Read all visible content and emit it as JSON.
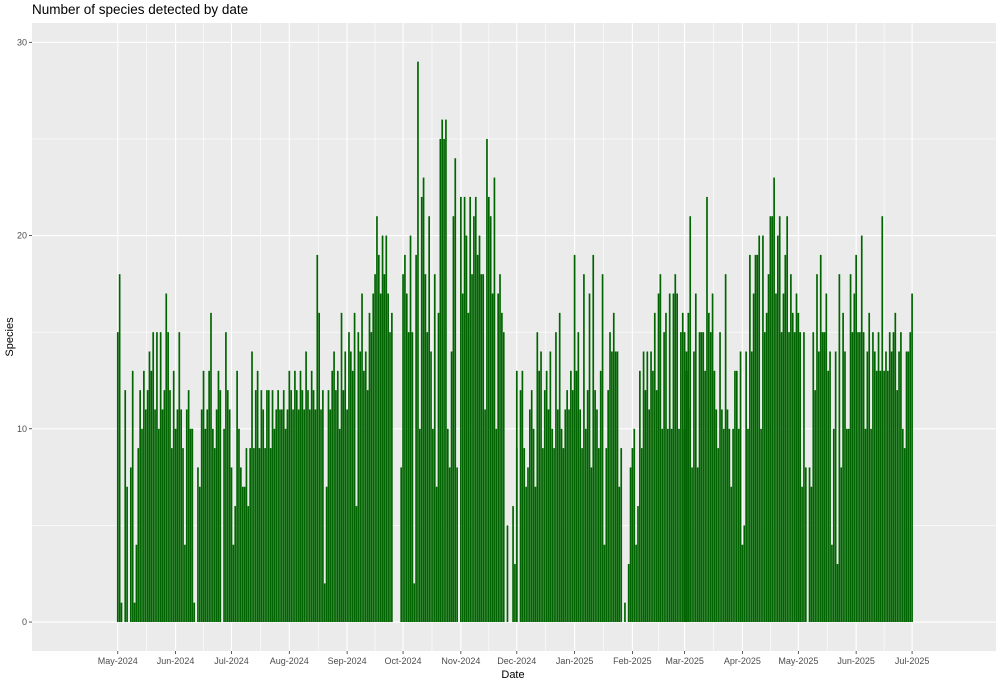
{
  "chart_data": {
    "type": "bar",
    "title": "Number of species detected by date",
    "xlabel": "Date",
    "ylabel": "Species",
    "ylim": [
      -1.5,
      31
    ],
    "y_ticks": [
      0,
      10,
      20,
      30
    ],
    "x_ticks": [
      {
        "label": "May-2024",
        "date": "2024-05-01"
      },
      {
        "label": "Jun-2024",
        "date": "2024-06-01"
      },
      {
        "label": "Jul-2024",
        "date": "2024-07-01"
      },
      {
        "label": "Aug-2024",
        "date": "2024-08-01"
      },
      {
        "label": "Sep-2024",
        "date": "2024-09-01"
      },
      {
        "label": "Oct-2024",
        "date": "2024-10-01"
      },
      {
        "label": "Nov-2024",
        "date": "2024-11-01"
      },
      {
        "label": "Dec-2024",
        "date": "2024-12-01"
      },
      {
        "label": "Jan-2025",
        "date": "2025-01-01"
      },
      {
        "label": "Feb-2025",
        "date": "2025-02-01"
      },
      {
        "label": "Mar-2025",
        "date": "2025-03-01"
      },
      {
        "label": "Apr-2025",
        "date": "2025-04-01"
      },
      {
        "label": "May-2025",
        "date": "2025-05-01"
      },
      {
        "label": "Jun-2025",
        "date": "2025-06-01"
      },
      {
        "label": "Jul-2025",
        "date": "2025-07-01"
      }
    ],
    "grid": true,
    "bar_color": "#006400",
    "panel_color": "#EBEBEB",
    "grid_color": "#FFFFFF",
    "series": [
      {
        "month": "2024-05",
        "values": [
          15,
          18,
          1,
          0,
          12,
          7,
          0,
          8,
          13,
          1,
          4,
          9,
          12,
          10,
          13,
          11,
          12,
          14,
          13,
          15,
          11,
          15,
          10,
          15,
          11,
          12,
          17,
          15,
          12,
          9,
          13
        ]
      },
      {
        "month": "2024-06",
        "values": [
          10,
          11,
          15,
          11,
          9,
          4,
          11,
          12,
          10,
          10,
          1,
          0,
          8,
          7,
          11,
          13,
          10,
          11,
          13,
          16,
          10,
          9,
          11,
          13,
          12,
          0,
          10,
          15,
          12,
          11
        ]
      },
      {
        "month": "2024-07",
        "values": [
          8,
          4,
          6,
          13,
          10,
          8,
          7,
          7,
          9,
          6,
          9,
          14,
          9,
          12,
          13,
          9,
          12,
          11,
          9,
          12,
          12,
          9,
          12,
          10,
          11,
          12,
          11,
          11,
          12,
          10,
          11
        ]
      },
      {
        "month": "2024-08",
        "values": [
          13,
          12,
          11,
          13,
          12,
          11,
          13,
          12,
          11,
          14,
          12,
          11,
          13,
          12,
          11,
          19,
          16,
          11,
          12,
          2,
          7,
          12,
          11,
          13,
          14,
          12,
          13,
          10,
          16,
          12,
          14
        ]
      },
      {
        "month": "2024-09",
        "values": [
          11,
          15,
          14,
          13,
          16,
          6,
          15,
          14,
          17,
          13,
          14,
          12,
          16,
          15,
          17,
          18,
          21,
          19,
          17,
          20,
          18,
          20,
          17,
          15,
          16,
          0,
          0,
          0,
          0,
          8
        ]
      },
      {
        "month": "2024-10",
        "values": [
          18,
          19,
          17,
          15,
          20,
          15,
          2,
          19,
          29,
          10,
          22,
          23,
          18,
          15,
          21,
          14,
          10,
          18,
          7,
          16,
          25,
          26,
          25,
          26,
          10,
          8,
          14,
          21,
          24,
          8
        ]
      },
      {
        "month": "2024-11",
        "values": [
          22,
          17,
          22,
          20,
          16,
          22,
          18,
          21,
          22,
          19,
          20,
          18,
          18,
          11,
          25,
          22,
          21,
          17,
          23,
          10,
          17,
          18,
          16,
          15,
          0,
          5,
          0,
          0,
          6,
          3,
          9
        ]
      },
      {
        "month": "2024-12",
        "values": [
          13,
          0,
          12,
          13,
          9,
          7,
          8,
          11,
          12,
          10,
          7,
          15,
          13,
          14,
          9,
          12,
          13,
          11,
          14,
          10,
          9,
          15,
          11,
          16,
          10,
          9,
          11,
          12,
          11,
          13,
          12
        ]
      },
      {
        "month": "2025-01",
        "values": [
          19,
          13,
          15,
          11,
          9,
          18,
          10,
          12,
          17,
          8,
          19,
          12,
          11,
          9,
          13,
          18,
          4,
          9,
          12,
          15,
          14,
          16,
          14,
          14,
          7,
          9,
          0,
          1,
          0,
          3,
          8
        ]
      },
      {
        "month": "2025-02",
        "values": [
          9,
          10,
          4,
          6,
          13,
          9,
          14,
          12,
          14,
          11,
          14,
          13,
          16,
          12,
          17,
          18,
          10,
          15,
          16,
          10,
          17,
          10,
          17,
          18,
          17,
          10,
          15,
          16,
          15,
          14,
          16
        ]
      },
      {
        "month": "2025-03",
        "values": [
          10,
          13,
          11,
          21,
          8,
          14,
          17,
          8,
          15,
          15,
          15,
          13,
          22,
          16,
          15,
          17,
          13,
          11,
          9,
          15,
          11,
          10,
          18,
          11,
          10,
          7,
          10,
          13,
          13,
          10,
          14
        ]
      },
      {
        "month": "2025-04",
        "values": [
          4,
          5,
          14,
          10,
          19,
          14,
          17,
          19,
          19,
          20,
          10,
          20,
          15,
          16,
          18,
          21,
          21,
          23,
          17,
          20,
          21,
          15,
          17,
          19,
          21,
          15,
          18,
          16,
          15,
          17,
          15
        ]
      },
      {
        "month": "2025-05",
        "values": [
          16,
          15,
          7,
          15,
          8,
          0,
          8,
          7,
          15,
          12,
          18,
          14,
          19,
          15,
          15,
          17,
          13,
          14,
          4,
          10,
          14,
          3,
          18,
          8,
          16,
          14,
          10,
          10,
          18,
          15,
          17
        ]
      },
      {
        "month": "2025-06",
        "values": [
          19,
          15,
          15,
          20,
          15,
          10,
          14,
          16,
          10,
          15,
          14,
          13,
          15,
          13,
          21,
          13,
          14,
          13,
          15,
          14,
          15,
          16,
          12,
          14,
          15,
          10,
          9,
          14,
          14,
          15
        ]
      },
      {
        "month": "2025-07",
        "values": [
          17
        ]
      }
    ]
  }
}
